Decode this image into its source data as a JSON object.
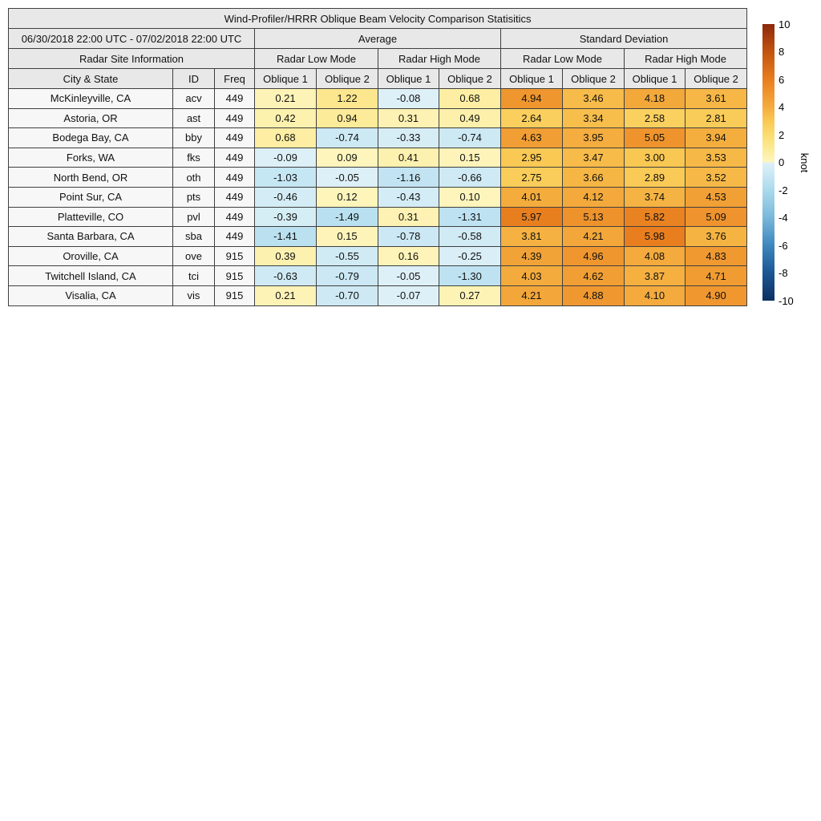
{
  "chart_data": {
    "type": "heatmap",
    "title": "Wind-Profiler/HRRR Oblique Beam Velocity Comparison Statisitics",
    "date_range": "06/30/2018 22:00 UTC - 07/02/2018 22:00 UTC",
    "group_headers": [
      "Average",
      "Standard Deviation"
    ],
    "section_header": "Radar Site Information",
    "mode_headers": [
      "Radar Low Mode",
      "Radar High Mode",
      "Radar Low Mode",
      "Radar High Mode"
    ],
    "col_headers": [
      "City & State",
      "ID",
      "Freq",
      "Oblique 1",
      "Oblique 2",
      "Oblique 1",
      "Oblique 2",
      "Oblique 1",
      "Oblique 2",
      "Oblique 1",
      "Oblique 2"
    ],
    "rows": [
      {
        "city": "McKinleyville, CA",
        "id": "acv",
        "freq": "449",
        "values": [
          0.21,
          1.22,
          -0.08,
          0.68,
          4.94,
          3.46,
          4.18,
          3.61
        ]
      },
      {
        "city": "Astoria, OR",
        "id": "ast",
        "freq": "449",
        "values": [
          0.42,
          0.94,
          0.31,
          0.49,
          2.64,
          3.34,
          2.58,
          2.81
        ]
      },
      {
        "city": "Bodega Bay, CA",
        "id": "bby",
        "freq": "449",
        "values": [
          0.68,
          -0.74,
          -0.33,
          -0.74,
          4.63,
          3.95,
          5.05,
          3.94
        ]
      },
      {
        "city": "Forks, WA",
        "id": "fks",
        "freq": "449",
        "values": [
          -0.09,
          0.09,
          0.41,
          0.15,
          2.95,
          3.47,
          3.0,
          3.53
        ]
      },
      {
        "city": "North Bend, OR",
        "id": "oth",
        "freq": "449",
        "values": [
          -1.03,
          -0.05,
          -1.16,
          -0.66,
          2.75,
          3.66,
          2.89,
          3.52
        ]
      },
      {
        "city": "Point Sur, CA",
        "id": "pts",
        "freq": "449",
        "values": [
          -0.46,
          0.12,
          -0.43,
          0.1,
          4.01,
          4.12,
          3.74,
          4.53
        ]
      },
      {
        "city": "Platteville, CO",
        "id": "pvl",
        "freq": "449",
        "values": [
          -0.39,
          -1.49,
          0.31,
          -1.31,
          5.97,
          5.13,
          5.82,
          5.09
        ]
      },
      {
        "city": "Santa Barbara, CA",
        "id": "sba",
        "freq": "449",
        "values": [
          -1.41,
          0.15,
          -0.78,
          -0.58,
          3.81,
          4.21,
          5.98,
          3.76
        ]
      },
      {
        "city": "Oroville, CA",
        "id": "ove",
        "freq": "915",
        "values": [
          0.39,
          -0.55,
          0.16,
          -0.25,
          4.39,
          4.96,
          4.08,
          4.83
        ]
      },
      {
        "city": "Twitchell Island, CA",
        "id": "tci",
        "freq": "915",
        "values": [
          -0.63,
          -0.79,
          -0.05,
          -1.3,
          4.03,
          4.62,
          3.87,
          4.71
        ]
      },
      {
        "city": "Visalia, CA",
        "id": "vis",
        "freq": "915",
        "values": [
          0.21,
          -0.7,
          -0.07,
          0.27,
          4.21,
          4.88,
          4.1,
          4.9
        ]
      }
    ],
    "colorbar": {
      "label": "knot",
      "min": -10,
      "max": 10,
      "tick_values": [
        10,
        8,
        6,
        4,
        2,
        0,
        -2,
        -4,
        -6,
        -8,
        -10
      ]
    },
    "colormap_anchors": [
      [
        -10,
        "#0B3161"
      ],
      [
        -8,
        "#1B5694"
      ],
      [
        -6,
        "#3E87BE"
      ],
      [
        -4,
        "#79B8DA"
      ],
      [
        -2,
        "#ABDAEC"
      ],
      [
        -1,
        "#C6E6F3"
      ],
      [
        -0.001,
        "#DFF1F7"
      ],
      [
        0.001,
        "#FEF6C0"
      ],
      [
        1,
        "#FCEA96"
      ],
      [
        2,
        "#FBDC70"
      ],
      [
        3,
        "#F9C853"
      ],
      [
        4,
        "#F4AC3D"
      ],
      [
        5,
        "#EF952E"
      ],
      [
        6,
        "#E87E1E"
      ],
      [
        8,
        "#C25410"
      ],
      [
        10,
        "#8C290B"
      ]
    ],
    "style_colors": {
      "header_bg": "#e8e8e8",
      "info_cell_bg": "#f7f7f7",
      "grid_border": "#3f3f3f"
    }
  }
}
